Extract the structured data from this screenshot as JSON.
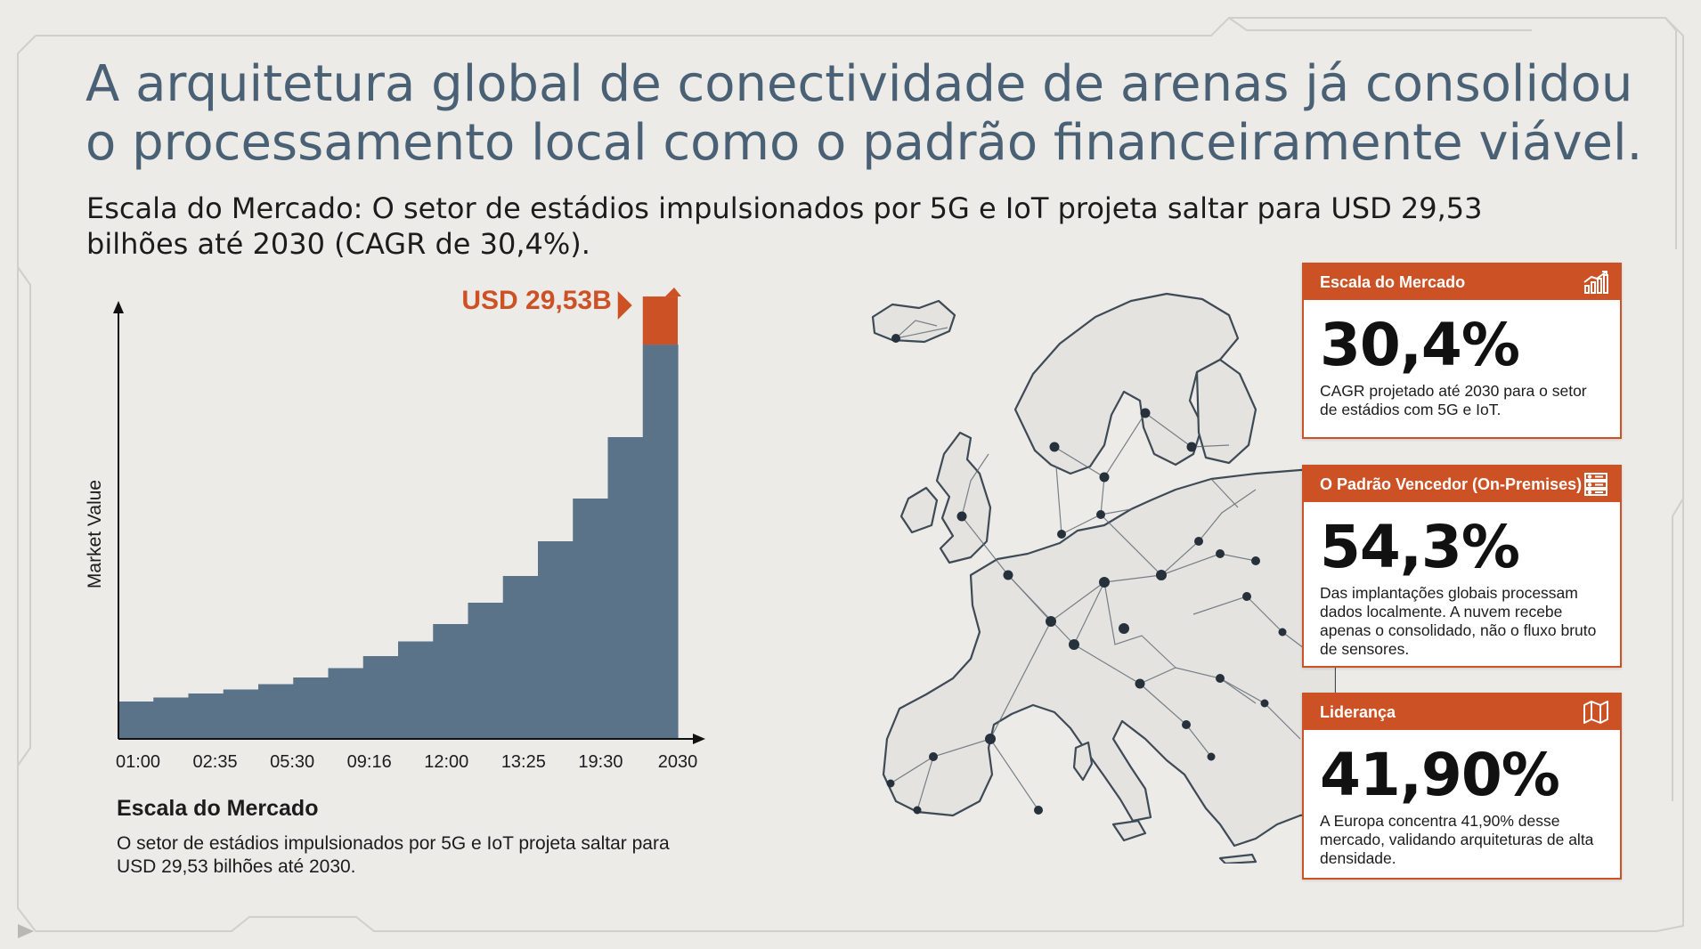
{
  "headline": "A arquitetura global de conectividade de arenas já consolidou o processamento local como o padrão financeiramente viável.",
  "subheadline": "Escala do Mercado: O setor de estádios impulsionados por 5G e IoT projeta saltar para USD 29,53 bilhões até 2030 (CAGR de 30,4%).",
  "chart_data": {
    "type": "bar",
    "style": "step-area",
    "ylabel": "Market Value",
    "xlabel": "",
    "title": "",
    "x_tick_labels": [
      "01:00",
      "02:35",
      "05:30",
      "09:16",
      "12:00",
      "13:25",
      "19:30",
      "2030"
    ],
    "values": [
      2.8,
      3.1,
      3.4,
      3.7,
      4.1,
      4.6,
      5.3,
      6.2,
      7.3,
      8.6,
      10.2,
      12.2,
      14.8,
      18.0,
      22.6,
      29.53
    ],
    "highlight_index": 15,
    "highlight_increment": 3.6,
    "highlight_label": "USD 29,53B",
    "ylim": [
      0,
      32
    ],
    "grid": false,
    "colors": {
      "bar": "#5a7389",
      "highlight": "#cc5226",
      "axis": "#111111"
    }
  },
  "caption": {
    "title": "Escala do Mercado",
    "text": "O setor de estádios impulsionados por 5G e IoT projeta saltar para USD 29,53 bilhões até 2030."
  },
  "cards": {
    "market": {
      "header": "Escala do Mercado",
      "value": "30,4%",
      "text": "CAGR projetado até 2030 para o setor de estádios com 5G e IoT.",
      "icon": "growth-chart-icon"
    },
    "onprem": {
      "header": "O Padrão Vencedor (On-Premises)",
      "value": "54,3%",
      "text": "Das implantações globais processam dados localmente. A nuvem recebe apenas o consolidado, não o fluxo bruto de sensores.",
      "icon": "server-icon"
    },
    "leader": {
      "header": "Liderança",
      "value": "41,90%",
      "text": "A Europa concentra 41,90% desse mercado, validando arquiteturas de alta densidade.",
      "icon": "map-icon"
    }
  },
  "colors": {
    "accent": "#cc5226",
    "slate": "#5a7389",
    "title": "#4a6175",
    "background": "#ecebe7"
  }
}
